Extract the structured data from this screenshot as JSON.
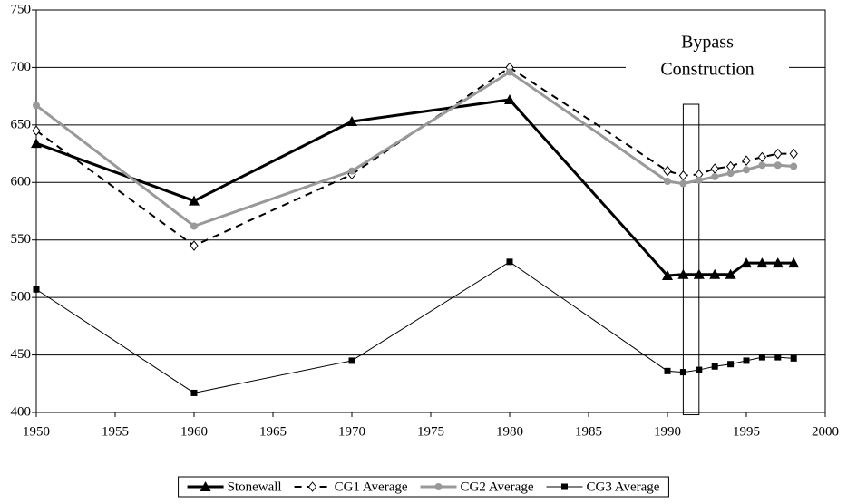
{
  "chart_data": {
    "type": "line",
    "x": [
      1950,
      1960,
      1970,
      1980,
      1990,
      1991,
      1992,
      1993,
      1994,
      1995,
      1996,
      1997,
      1998
    ],
    "series": [
      {
        "name": "Stonewall",
        "color": "#000000",
        "marker": "triangle",
        "dash": false,
        "width": 3,
        "values": [
          634,
          584,
          653,
          672,
          519,
          520,
          520,
          520,
          520,
          530,
          530,
          530,
          530
        ]
      },
      {
        "name": "CG1 Average",
        "color": "#000000",
        "marker": "diamond",
        "dash": true,
        "width": 2,
        "values": [
          645,
          545,
          607,
          700,
          610,
          606,
          607,
          612,
          614,
          619,
          622,
          625,
          625
        ]
      },
      {
        "name": "CG2 Average",
        "color": "#999999",
        "marker": "circle",
        "dash": false,
        "width": 3,
        "values": [
          667,
          562,
          610,
          696,
          601,
          599,
          602,
          605,
          608,
          611,
          615,
          615,
          614
        ]
      },
      {
        "name": "CG3 Average",
        "color": "#000000",
        "marker": "square",
        "dash": false,
        "width": 1,
        "values": [
          507,
          417,
          445,
          531,
          436,
          435,
          437,
          440,
          442,
          445,
          448,
          448,
          447
        ]
      }
    ],
    "xlim": [
      1950,
      2000
    ],
    "xticks": [
      1950,
      1955,
      1960,
      1965,
      1970,
      1975,
      1980,
      1985,
      1990,
      1995,
      2000
    ],
    "ylim": [
      400,
      750
    ],
    "yticks": [
      400,
      450,
      500,
      550,
      600,
      650,
      700,
      750
    ],
    "grid": true,
    "legend": "bottom",
    "annotation": {
      "text": [
        "Bypass",
        "Construction"
      ],
      "x": [
        1991,
        1992
      ],
      "y": [
        398,
        668
      ]
    }
  }
}
